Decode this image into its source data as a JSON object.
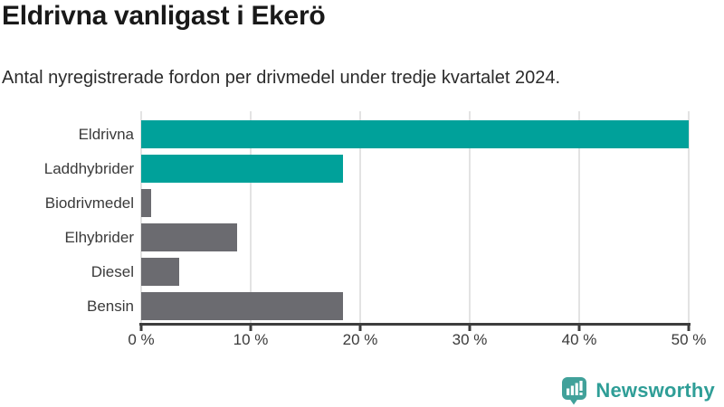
{
  "title": "Eldrivna vanligast i Ekerö",
  "subtitle": "Antal nyregistrerade fordon per drivmedel under tredje kvartalet 2024.",
  "chart_data": {
    "type": "bar",
    "orientation": "horizontal",
    "title": "Eldrivna vanligast i Ekerö",
    "subtitle": "Antal nyregistrerade fordon per drivmedel under tredje kvartalet 2024.",
    "categories": [
      "Eldrivna",
      "Laddhybrider",
      "Biodrivmedel",
      "Elhybrider",
      "Diesel",
      "Bensin"
    ],
    "values": [
      50.0,
      18.4,
      0.9,
      8.8,
      3.5,
      18.4
    ],
    "unit": "%",
    "xlim": [
      0,
      50
    ],
    "x_tick_values": [
      0,
      10,
      20,
      30,
      40,
      50
    ],
    "x_tick_labels": [
      "0 %",
      "10 %",
      "20 %",
      "30 %",
      "40 %",
      "50 %"
    ],
    "grid": "vertical-gridlines-on",
    "legend": "none",
    "bar_colors": [
      "#00a19a",
      "#00a19a",
      "#6b6b70",
      "#6b6b70",
      "#6b6b70",
      "#6b6b70"
    ],
    "highlight_color": "#00a19a",
    "default_color": "#6b6b70",
    "gridline_color": "#e3e3e3",
    "axis_color": "#3d3d3d"
  },
  "branding": {
    "logo_text": "Newsworthy",
    "logo_color": "#2f9e97",
    "logo_icon_color": "#41a19a",
    "logo_icon": "bar-chart-speech-bubble-icon"
  }
}
